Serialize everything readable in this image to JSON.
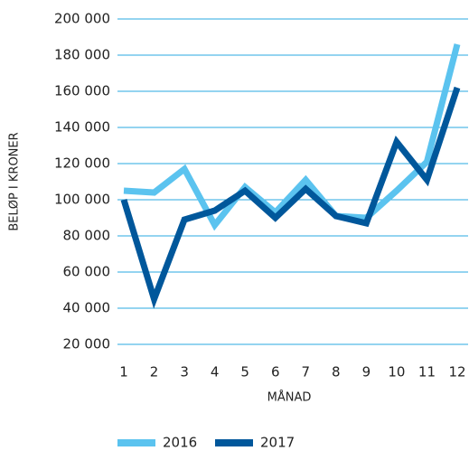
{
  "chart_data": {
    "type": "line",
    "x_label": "MÅNAD",
    "y_label": "BELØP I KRONER",
    "categories": [
      "1",
      "2",
      "3",
      "4",
      "5",
      "6",
      "7",
      "8",
      "9",
      "10",
      "11",
      "12"
    ],
    "series": [
      {
        "name": "2016",
        "color": "#5bc3ef",
        "values": [
          105000,
          104000,
          117000,
          86000,
          107000,
          93000,
          111000,
          91000,
          90000,
          105000,
          121000,
          186000
        ]
      },
      {
        "name": "2017",
        "color": "#00579b",
        "values": [
          100000,
          45000,
          89000,
          94000,
          105000,
          90000,
          106000,
          91000,
          87000,
          132000,
          111000,
          162000
        ]
      }
    ],
    "ylim": [
      20000,
      200000
    ],
    "yticks": [
      {
        "value": 20000,
        "label": "20 000"
      },
      {
        "value": 40000,
        "label": "40 000"
      },
      {
        "value": 60000,
        "label": "60 000"
      },
      {
        "value": 80000,
        "label": "80 000"
      },
      {
        "value": 100000,
        "label": "100 000"
      },
      {
        "value": 120000,
        "label": "120 000"
      },
      {
        "value": 140000,
        "label": "140 000"
      },
      {
        "value": 160000,
        "label": "160 000"
      },
      {
        "value": 180000,
        "label": "180 000"
      },
      {
        "value": 200000,
        "label": "200 000"
      }
    ],
    "grid": true,
    "grid_color": "#29a9e0",
    "legend": "bottom"
  }
}
